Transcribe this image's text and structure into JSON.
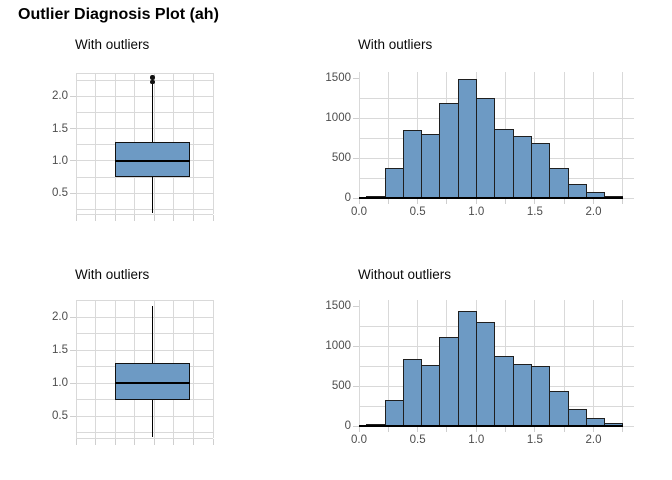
{
  "page_title": "Outlier Diagnosis Plot (ah)",
  "colors": {
    "fill": "#6d9ac4",
    "bar_stroke": "#1f1f1f",
    "grid": "#d9d9d9",
    "axis_text": "#4d4d4d",
    "axis_line": "#000000",
    "title_text": "#000000"
  },
  "chart_data": [
    {
      "type": "boxplot",
      "title": "With outliers",
      "ylim": [
        0.18,
        2.36
      ],
      "grid_step": 0.25,
      "yticks": [
        0.5,
        1.0,
        1.5,
        2.0
      ],
      "ytick_labels": [
        "0.5",
        "1.0",
        "1.5",
        "2.0"
      ],
      "stats": {
        "whisker_low": 0.19,
        "q1": 0.75,
        "median": 1.0,
        "q3": 1.3,
        "whisker_high": 2.2,
        "outliers": [
          2.22,
          2.29
        ]
      }
    },
    {
      "type": "histogram",
      "title": "With outliers",
      "xlim": [
        0,
        2.345
      ],
      "ylim": [
        0,
        1575
      ],
      "x_grid_step": 0.25,
      "y_grid_step": 250,
      "xticks": [
        0,
        0.5,
        1.0,
        1.5,
        2.0
      ],
      "xtick_labels": [
        "0.0",
        "0.5",
        "1.0",
        "1.5",
        "2.0"
      ],
      "yticks": [
        0,
        500,
        1000,
        1500
      ],
      "ytick_labels": [
        "0",
        "500",
        "1000",
        "1500"
      ],
      "bin_start": 0.062,
      "bin_width": 0.156,
      "counts": [
        30,
        370,
        845,
        805,
        1185,
        1490,
        1245,
        865,
        775,
        690,
        375,
        180,
        80,
        12
      ]
    },
    {
      "type": "boxplot",
      "title": "With outliers",
      "ylim": [
        0.17,
        2.26
      ],
      "grid_step": 0.25,
      "yticks": [
        0.5,
        1.0,
        1.5,
        2.0
      ],
      "ytick_labels": [
        "0.5",
        "1.0",
        "1.5",
        "2.0"
      ],
      "stats": {
        "whisker_low": 0.19,
        "q1": 0.74,
        "median": 1.0,
        "q3": 1.3,
        "whisker_high": 2.17,
        "outliers": []
      }
    },
    {
      "type": "histogram",
      "title": "Without outliers",
      "xlim": [
        0,
        2.345
      ],
      "ylim": [
        0,
        1575
      ],
      "x_grid_step": 0.25,
      "y_grid_step": 250,
      "xticks": [
        0,
        0.5,
        1.0,
        1.5,
        2.0
      ],
      "xtick_labels": [
        "0.0",
        "0.5",
        "1.0",
        "1.5",
        "2.0"
      ],
      "yticks": [
        0,
        500,
        1000,
        1500
      ],
      "ytick_labels": [
        "0",
        "500",
        "1000",
        "1500"
      ],
      "bin_start": 0.062,
      "bin_width": 0.156,
      "counts": [
        25,
        320,
        840,
        765,
        1110,
        1440,
        1305,
        875,
        770,
        755,
        435,
        210,
        100,
        35
      ]
    }
  ]
}
